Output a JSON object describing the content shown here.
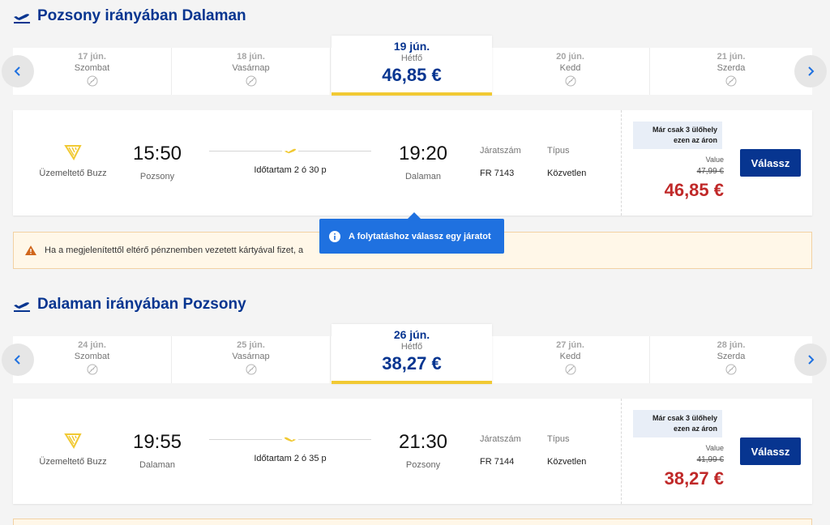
{
  "outbound": {
    "title": "Pozsony irányában Dalaman",
    "dates": [
      {
        "date": "17 jún.",
        "weekday": "Szombat"
      },
      {
        "date": "18 jún.",
        "weekday": "Vasárnap"
      },
      {
        "date": "19 jún.",
        "weekday": "Hétfő",
        "price": "46,85 €"
      },
      {
        "date": "20 jún.",
        "weekday": "Kedd"
      },
      {
        "date": "21 jún.",
        "weekday": "Szerda"
      }
    ],
    "flight": {
      "operator": "Üzemeltető Buzz",
      "dep_time": "15:50",
      "dep_city": "Pozsony",
      "arr_time": "19:20",
      "arr_city": "Dalaman",
      "duration": "Időtartam 2 ó 30 p",
      "flight_no_label": "Járatszám",
      "flight_no": "FR 7143",
      "type_label": "Típus",
      "type": "Közvetlen",
      "seats_line1": "Már csak 3 ülőhely",
      "seats_line2": "ezen az áron",
      "value_label": "Value",
      "old_price": "47,99 €",
      "price": "46,85 €",
      "select_label": "Válassz"
    }
  },
  "notice": "Ha a megjelenítettől eltérő pénznemben vezetett kártyával fizet, a",
  "tooltip": "A folytatáshoz válassz egy járatot",
  "inbound": {
    "title": "Dalaman irányában Pozsony",
    "dates": [
      {
        "date": "24 jún.",
        "weekday": "Szombat"
      },
      {
        "date": "25 jún.",
        "weekday": "Vasárnap"
      },
      {
        "date": "26 jún.",
        "weekday": "Hétfő",
        "price": "38,27 €"
      },
      {
        "date": "27 jún.",
        "weekday": "Kedd"
      },
      {
        "date": "28 jún.",
        "weekday": "Szerda"
      }
    ],
    "flight": {
      "operator": "Üzemeltető Buzz",
      "dep_time": "19:55",
      "dep_city": "Dalaman",
      "arr_time": "21:30",
      "arr_city": "Pozsony",
      "duration": "Időtartam 2 ó 35 p",
      "flight_no_label": "Járatszám",
      "flight_no": "FR 7144",
      "type_label": "Típus",
      "type": "Közvetlen",
      "seats_line1": "Már csak 3 ülőhely",
      "seats_line2": "ezen az áron",
      "value_label": "Value",
      "old_price": "41,99 €",
      "price": "38,27 €",
      "select_label": "Válassz"
    }
  },
  "colors": {
    "brand": "#073590",
    "accent": "#f1c933",
    "price": "#c02929",
    "info": "#1f71e0"
  },
  "icons": [
    "plane-departure-icon",
    "no-flight-icon",
    "chevron-left-icon",
    "chevron-right-icon",
    "harp-logo-icon",
    "plane-icon",
    "warning-icon",
    "info-icon"
  ]
}
